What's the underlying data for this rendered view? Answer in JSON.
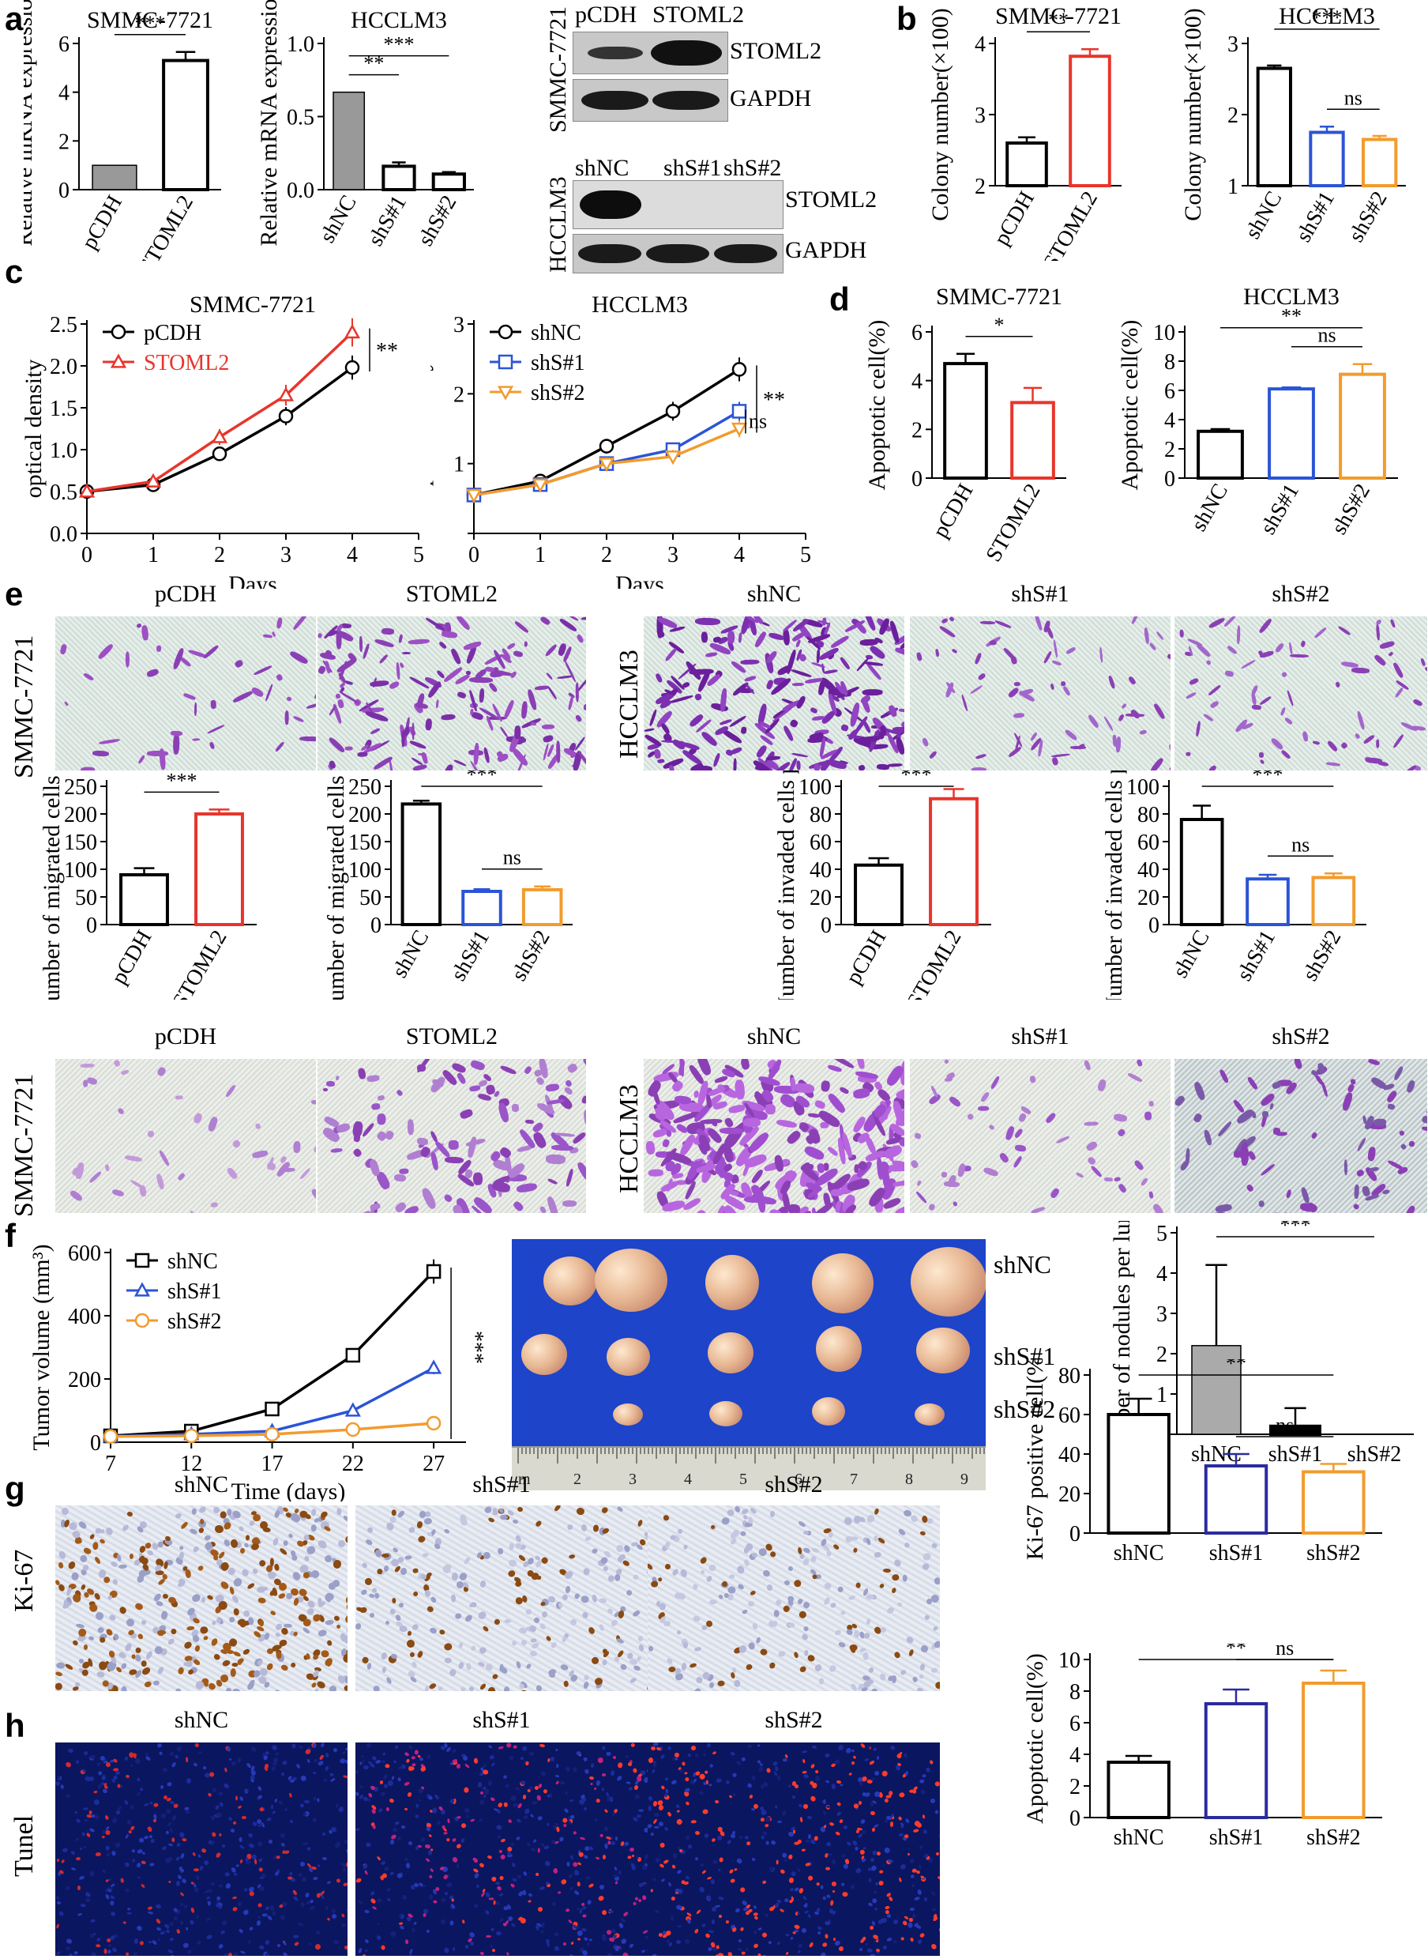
{
  "panel_letters": {
    "a": "a",
    "b": "b",
    "c": "c",
    "d": "d",
    "e": "e",
    "f": "f",
    "g": "g",
    "h": "h"
  },
  "blots": {
    "top": {
      "cols": [
        "pCDH",
        "STOML2"
      ],
      "side": "SMMC-7721",
      "bands": [
        "STOML2",
        "GAPDH"
      ]
    },
    "bottom": {
      "cols": [
        "shNC",
        "shS#1",
        "shS#2"
      ],
      "side": "HCCLM3",
      "bands": [
        "STOML2",
        "GAPDH"
      ]
    }
  },
  "images": {
    "e_top": {
      "side_left": "SMMC-7721",
      "side_right": "HCCLM3",
      "labels": [
        "pCDH",
        "STOML2",
        "shNC",
        "shS#1",
        "shS#2"
      ]
    },
    "e_bottom": {
      "side_left": "SMMC-7721",
      "side_right": "HCCLM3",
      "labels": [
        "pCDH",
        "STOML2",
        "shNC",
        "shS#1",
        "shS#2"
      ]
    },
    "g": {
      "side": "Ki-67",
      "labels": [
        "shNC",
        "shS#1",
        "shS#2"
      ]
    },
    "h": {
      "side": "Tunel",
      "labels": [
        "shNC",
        "shS#1",
        "shS#2"
      ]
    },
    "f": {
      "rows": [
        "shNC",
        "shS#1",
        "shS#2"
      ],
      "ruler": [
        "m",
        "2",
        "3",
        "4",
        "5",
        "6",
        "7",
        "8",
        "9"
      ]
    }
  },
  "chart_data": [
    {
      "id": "a1",
      "type": "bar",
      "title": "SMMC-7721",
      "ylabel": "Relative mRNA expression",
      "categories": [
        "pCDH",
        "STOML2"
      ],
      "values": [
        1,
        5.3
      ],
      "errors": [
        0,
        0.35
      ],
      "ylim": [
        0,
        6
      ],
      "yticks": [
        "0",
        "2",
        "4",
        "6"
      ],
      "colors": [
        "#999999",
        "#ffffff"
      ],
      "sig": [
        {
          "from": 0,
          "to": 1,
          "text": "***"
        }
      ]
    },
    {
      "id": "a2",
      "type": "bar",
      "title": "HCCLM3",
      "ylabel": "Relative mRNA expression",
      "categories": [
        "shNC",
        "shS#1",
        "shS#2"
      ],
      "values": [
        1,
        0.24,
        0.16
      ],
      "errors": [
        0,
        0.04,
        0.02
      ],
      "ylim": [
        0,
        1.5
      ],
      "yticks": [
        "0.0",
        "0.5",
        "1.0"
      ],
      "colors": [
        "#999999",
        "#ffffff",
        "#ffffff"
      ],
      "sig": [
        {
          "from": 0,
          "to": 1,
          "text": "**"
        },
        {
          "from": 0,
          "to": 2,
          "text": "***"
        }
      ]
    },
    {
      "id": "b1",
      "type": "bar",
      "title": "SMMC-7721",
      "ylabel": "Colony number(×100)",
      "categories": [
        "pCDH",
        "STOML2"
      ],
      "values": [
        2.6,
        3.82
      ],
      "errors": [
        0.08,
        0.1
      ],
      "ylim": [
        2,
        4
      ],
      "yticks": [
        "2",
        "3",
        "4"
      ],
      "colors": [
        "#000000",
        "#e8352b"
      ],
      "sig": [
        {
          "from": 0,
          "to": 1,
          "text": "**"
        }
      ]
    },
    {
      "id": "b2",
      "type": "bar",
      "title": "HCCLM3",
      "ylabel": "Colony number(×100)",
      "categories": [
        "shNC",
        "shS#1",
        "shS#2"
      ],
      "values": [
        2.65,
        1.75,
        1.65
      ],
      "errors": [
        0.04,
        0.08,
        0.05
      ],
      "ylim": [
        1,
        3
      ],
      "yticks": [
        "1",
        "2",
        "3"
      ],
      "colors": [
        "#000000",
        "#2b54d6",
        "#f29b2d"
      ],
      "sig": [
        {
          "from": 0,
          "to": 2,
          "text": "***"
        },
        {
          "from": 1,
          "to": 2,
          "text": "ns"
        }
      ]
    },
    {
      "id": "c1",
      "type": "line",
      "title": "SMMC-7721",
      "xlabel": "Days",
      "ylabel": "optical density",
      "x": [
        0,
        1,
        2,
        3,
        4
      ],
      "xlim": [
        0,
        5
      ],
      "ylim": [
        0,
        2.5
      ],
      "yticks": [
        "0.0",
        "0.5",
        "1.0",
        "1.5",
        "2.0",
        "2.5"
      ],
      "series": [
        {
          "name": "pCDH",
          "color": "#000000",
          "marker": "circle",
          "values": [
            0.5,
            0.58,
            0.95,
            1.4,
            1.98
          ]
        },
        {
          "name": "STOML2",
          "color": "#e8352b",
          "marker": "triangle",
          "values": [
            0.5,
            0.62,
            1.15,
            1.65,
            2.4
          ]
        }
      ],
      "sig": "**"
    },
    {
      "id": "c2",
      "type": "line",
      "title": "HCCLM3",
      "xlabel": "Days",
      "ylabel": "optical density",
      "x": [
        0,
        1,
        2,
        3,
        4
      ],
      "xlim": [
        0,
        5
      ],
      "ylim": [
        0,
        3
      ],
      "yticks": [
        "",
        "1",
        "2",
        "3"
      ],
      "series": [
        {
          "name": "shNC",
          "color": "#000000",
          "marker": "circle",
          "values": [
            0.55,
            0.75,
            1.25,
            1.75,
            2.35
          ]
        },
        {
          "name": "shS#1",
          "color": "#2b54d6",
          "marker": "square",
          "values": [
            0.55,
            0.7,
            1.0,
            1.2,
            1.75
          ]
        },
        {
          "name": "shS#2",
          "color": "#f29b2d",
          "marker": "triangle-down",
          "values": [
            0.55,
            0.7,
            1.0,
            1.1,
            1.5
          ]
        }
      ],
      "sig": "**",
      "sig2": "ns"
    },
    {
      "id": "d1",
      "type": "bar",
      "title": "SMMC-7721",
      "ylabel": "Apoptotic cell(%)",
      "categories": [
        "pCDH",
        "STOML2"
      ],
      "values": [
        4.7,
        3.1
      ],
      "errors": [
        0.4,
        0.6
      ],
      "ylim": [
        0,
        6
      ],
      "yticks": [
        "0",
        "2",
        "4",
        "6"
      ],
      "colors": [
        "#000000",
        "#e8352b"
      ],
      "sig": [
        {
          "from": 0,
          "to": 1,
          "text": "*"
        }
      ]
    },
    {
      "id": "d2",
      "type": "bar",
      "title": "HCCLM3",
      "ylabel": "Apoptotic cell(%)",
      "categories": [
        "shNC",
        "shS#1",
        "shS#2"
      ],
      "values": [
        3.2,
        6.1,
        7.1
      ],
      "errors": [
        0.15,
        0.1,
        0.7
      ],
      "ylim": [
        0,
        10
      ],
      "yticks": [
        "0",
        "2",
        "4",
        "6",
        "8",
        "10"
      ],
      "colors": [
        "#000000",
        "#2b54d6",
        "#f29b2d"
      ],
      "sig": [
        {
          "from": 0,
          "to": 2,
          "text": "**"
        },
        {
          "from": 1,
          "to": 2,
          "text": "ns"
        }
      ]
    },
    {
      "id": "e1",
      "type": "bar",
      "ylabel": "Number of migrated cells per well",
      "categories": [
        "pCDH",
        "STOML2"
      ],
      "values": [
        90,
        200
      ],
      "errors": [
        12,
        8
      ],
      "ylim": [
        0,
        250
      ],
      "yticks": [
        "0",
        "50",
        "100",
        "150",
        "200",
        "250"
      ],
      "colors": [
        "#000000",
        "#e8352b"
      ],
      "sig": [
        {
          "from": 0,
          "to": 1,
          "text": "***"
        }
      ]
    },
    {
      "id": "e2",
      "type": "bar",
      "ylabel": "Number of migrated cells per well",
      "categories": [
        "shNC",
        "shS#1",
        "shS#2"
      ],
      "values": [
        218,
        60,
        63
      ],
      "errors": [
        6,
        4,
        6
      ],
      "ylim": [
        0,
        250
      ],
      "yticks": [
        "0",
        "50",
        "100",
        "150",
        "200",
        "250"
      ],
      "colors": [
        "#000000",
        "#2b54d6",
        "#f29b2d"
      ],
      "sig": [
        {
          "from": 0,
          "to": 2,
          "text": "***"
        },
        {
          "from": 1,
          "to": 2,
          "text": "ns"
        }
      ]
    },
    {
      "id": "e3",
      "type": "bar",
      "ylabel": "Number of invaded cells per well",
      "categories": [
        "pCDH",
        "STOML2"
      ],
      "values": [
        43,
        91
      ],
      "errors": [
        5,
        7
      ],
      "ylim": [
        0,
        100
      ],
      "yticks": [
        "0",
        "20",
        "40",
        "60",
        "80",
        "100"
      ],
      "colors": [
        "#000000",
        "#e8352b"
      ],
      "sig": [
        {
          "from": 0,
          "to": 1,
          "text": "***"
        }
      ]
    },
    {
      "id": "e4",
      "type": "bar",
      "ylabel": "Number of invaded cells per well",
      "categories": [
        "shNC",
        "shS#1",
        "shS#2"
      ],
      "values": [
        76,
        33,
        34
      ],
      "errors": [
        10,
        3,
        3
      ],
      "ylim": [
        0,
        100
      ],
      "yticks": [
        "0",
        "20",
        "40",
        "60",
        "80",
        "100"
      ],
      "colors": [
        "#000000",
        "#2b54d6",
        "#f29b2d"
      ],
      "sig": [
        {
          "from": 0,
          "to": 2,
          "text": "***"
        },
        {
          "from": 1,
          "to": 2,
          "text": "ns"
        }
      ]
    },
    {
      "id": "f1",
      "type": "line",
      "xlabel": "Time (days)",
      "ylabel": "Tumor volume (mm³)",
      "x": [
        7,
        12,
        17,
        22,
        27
      ],
      "xlim": [
        7,
        29
      ],
      "ylim": [
        0,
        600
      ],
      "yticks": [
        "0",
        "200",
        "400",
        "600"
      ],
      "series": [
        {
          "name": "shNC",
          "color": "#000000",
          "marker": "square",
          "values": [
            20,
            35,
            105,
            275,
            540
          ]
        },
        {
          "name": "shS#1",
          "color": "#2b54d6",
          "marker": "triangle",
          "values": [
            18,
            25,
            35,
            100,
            235
          ]
        },
        {
          "name": "shS#2",
          "color": "#f29b2d",
          "marker": "circle",
          "values": [
            18,
            20,
            25,
            40,
            60
          ]
        }
      ],
      "sig": "***"
    },
    {
      "id": "f2",
      "type": "bar",
      "ylabel": "Number of nodules per lung",
      "categories": [
        "shNC",
        "shS#1",
        "shS#2"
      ],
      "values": [
        2.2,
        0.2,
        0
      ],
      "errors": [
        2.0,
        0.45,
        0
      ],
      "ylim": [
        0,
        5
      ],
      "yticks": [
        "0",
        "1",
        "2",
        "3",
        "4",
        "5"
      ],
      "colors": [
        "#aaaaaa",
        "#000000",
        "#ffffff"
      ],
      "sig": [
        {
          "from": 0,
          "to": 2,
          "text": "***"
        }
      ]
    },
    {
      "id": "g1",
      "type": "bar",
      "ylabel": "Ki-67 positive cell(%)",
      "categories": [
        "shNC",
        "shS#1",
        "shS#2"
      ],
      "values": [
        60,
        34,
        31
      ],
      "errors": [
        8,
        6,
        4
      ],
      "ylim": [
        0,
        80
      ],
      "yticks": [
        "0",
        "20",
        "40",
        "60",
        "80"
      ],
      "colors": [
        "#000000",
        "#2b2b9e",
        "#f29b2d"
      ],
      "sig": [
        {
          "from": 0,
          "to": 2,
          "text": "**"
        },
        {
          "from": 1,
          "to": 2,
          "text": "ns"
        }
      ]
    },
    {
      "id": "h1",
      "type": "bar",
      "ylabel": "Apoptotic cell(%)",
      "categories": [
        "shNC",
        "shS#1",
        "shS#2"
      ],
      "values": [
        3.5,
        7.2,
        8.5
      ],
      "errors": [
        0.4,
        0.9,
        0.8
      ],
      "ylim": [
        0,
        10
      ],
      "yticks": [
        "0",
        "2",
        "4",
        "6",
        "8",
        "10"
      ],
      "colors": [
        "#000000",
        "#2b2b9e",
        "#f29b2d"
      ],
      "sig": [
        {
          "from": 0,
          "to": 2,
          "text": "**"
        },
        {
          "from": 1,
          "to": 2,
          "text": "ns"
        }
      ]
    }
  ]
}
